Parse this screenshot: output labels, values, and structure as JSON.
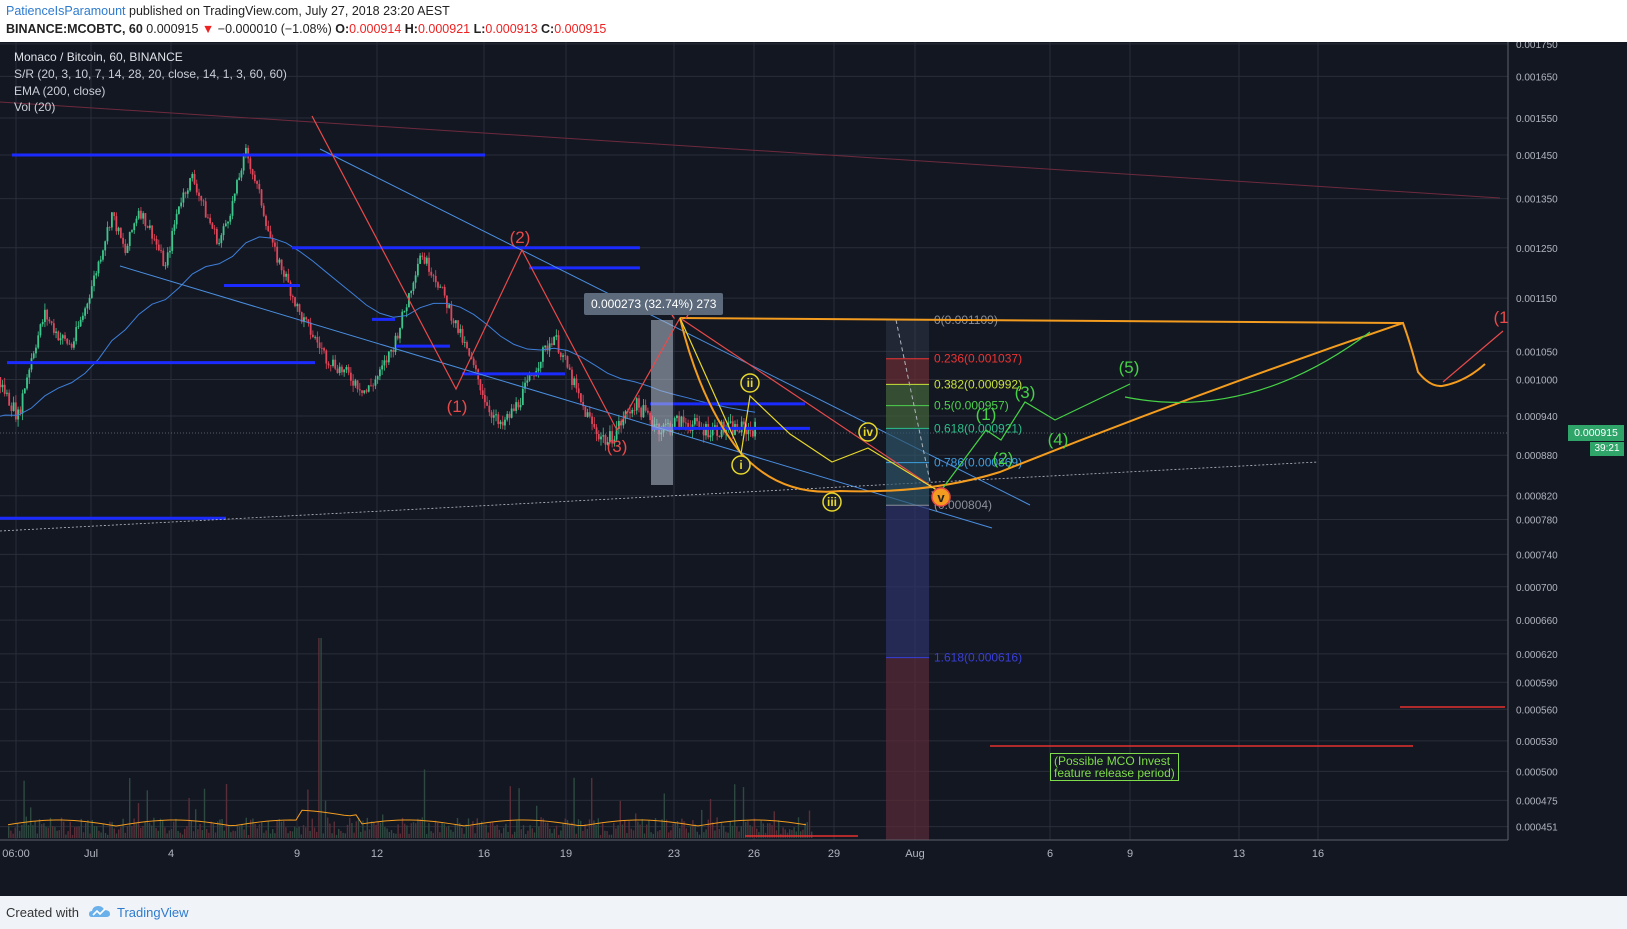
{
  "header": {
    "author": "PatienceIsParamount",
    "published_text": "published on TradingView.com, July 27, 2018 23:20 AEST",
    "symbol": "BINANCE:MCOBTC, 60",
    "price": "0.000915",
    "change": "−0.000010 (−1.08%)",
    "open_label": "O:",
    "open": "0.000914",
    "high_label": "H:",
    "high": "0.000921",
    "low_label": "L:",
    "low": "0.000913",
    "close_label": "C:",
    "close": "0.000915"
  },
  "legend": {
    "title": "Monaco / Bitcoin, 60, BINANCE",
    "indicator1": "S/R (20, 3, 10, 7, 14, 28, 20, close, 14, 1, 3, 60, 60)",
    "indicator2": "EMA (200, close)",
    "indicator3": "Vol (20)"
  },
  "chart_data": {
    "type": "candlestick",
    "x_tick_labels": [
      "06:00",
      "Jul",
      "4",
      "9",
      "12",
      "16",
      "19",
      "23",
      "26",
      "29",
      "Aug",
      "6",
      "9",
      "13",
      "16"
    ],
    "y_tick_labels": [
      "0.001750",
      "0.001650",
      "0.001550",
      "0.001450",
      "0.001350",
      "0.001250",
      "0.001150",
      "0.001050",
      "0.001000",
      "0.000940",
      "0.000880",
      "0.000820",
      "0.000780",
      "0.000740",
      "0.000700",
      "0.000660",
      "0.000620",
      "0.000590",
      "0.000560",
      "0.000530",
      "0.000500",
      "0.000475",
      "0.000451"
    ],
    "last_price": "0.000915",
    "countdown": "39:21",
    "price_path_days": [
      -2.5,
      -2,
      -1.5,
      -1,
      -0.5,
      0,
      0.5,
      1,
      1.5,
      2,
      2.5,
      3,
      3.5,
      4,
      4.5,
      5,
      5.5,
      6,
      6.5,
      7,
      7.5,
      8,
      8.5,
      9,
      9.5,
      10,
      10.5,
      11,
      11.5,
      12,
      12.5,
      13,
      13.5,
      14,
      14.5,
      15,
      15.5,
      16,
      16.5,
      17,
      17.5,
      18,
      18.5,
      19,
      19.5,
      20,
      20.5,
      21,
      21.5,
      22,
      22.5,
      23,
      23.5,
      24,
      24.5,
      25,
      25.5,
      26,
      26.5,
      27
    ],
    "price_path_values": [
      0.00092,
      0.00096,
      0.00102,
      0.00098,
      0.00094,
      0.00104,
      0.00112,
      0.00108,
      0.00106,
      0.00113,
      0.00122,
      0.00132,
      0.00124,
      0.00133,
      0.00128,
      0.00121,
      0.00134,
      0.0014,
      0.00132,
      0.00126,
      0.00134,
      0.00146,
      0.00136,
      0.00125,
      0.00119,
      0.00112,
      0.00108,
      0.00104,
      0.00102,
      0.001,
      0.00098,
      0.00101,
      0.00106,
      0.00114,
      0.00124,
      0.0012,
      0.00114,
      0.00108,
      0.00102,
      0.00096,
      0.00092,
      0.00095,
      0.00099,
      0.00104,
      0.00108,
      0.00102,
      0.00096,
      0.00092,
      0.0009,
      0.00093,
      0.00096,
      0.00094,
      0.00092,
      0.00093,
      0.00093,
      0.00092,
      0.00092,
      0.00092,
      0.00092,
      0.00092
    ],
    "fibonacci": [
      {
        "label": "0(0.001109)",
        "value": 0.001109,
        "color": "#8a8f98"
      },
      {
        "label": "0.236(0.001037)",
        "value": 0.001037,
        "color": "#e33"
      },
      {
        "label": "0.382(0.000992)",
        "value": 0.000992,
        "color": "#c8e03a"
      },
      {
        "label": "0.5(0.000957)",
        "value": 0.000957,
        "color": "#4cd14c"
      },
      {
        "label": "0.618(0.000921)",
        "value": 0.000921,
        "color": "#2bbf8a"
      },
      {
        "label": "0.786(0.000869)",
        "value": 0.000869,
        "color": "#3e9fe0"
      },
      {
        "label": "(0.000804)",
        "value": 0.000804,
        "color": "#8a8f98"
      },
      {
        "label": "1.618(0.000616)",
        "value": 0.000616,
        "color": "#3a3fd8"
      }
    ],
    "wave_labels_main": [
      "(1)",
      "(2)",
      "(3)",
      "(4)",
      "v"
    ],
    "wave_labels_sub": [
      "i",
      "ii",
      "iii",
      "iv"
    ],
    "wave_labels_projection": [
      "(1)",
      "(2)",
      "(3)",
      "(4)",
      "(5)",
      "(1"
    ],
    "measure_label": "0.000273 (32.74%) 273",
    "annotation": [
      "(Possible MCO Invest",
      "feature release period)"
    ]
  },
  "footer": {
    "created_with": "Created with",
    "brand": "TradingView"
  },
  "colors": {
    "background": "#131722",
    "grid": "#2a2e39",
    "wave_red": "#e84a4a",
    "wave_yellow": "#e8d82a",
    "projection_green": "#46d246",
    "cup_orange": "#f39c1f",
    "channel_blue": "#4a8fe0",
    "sr_blue": "#1b2bff"
  }
}
